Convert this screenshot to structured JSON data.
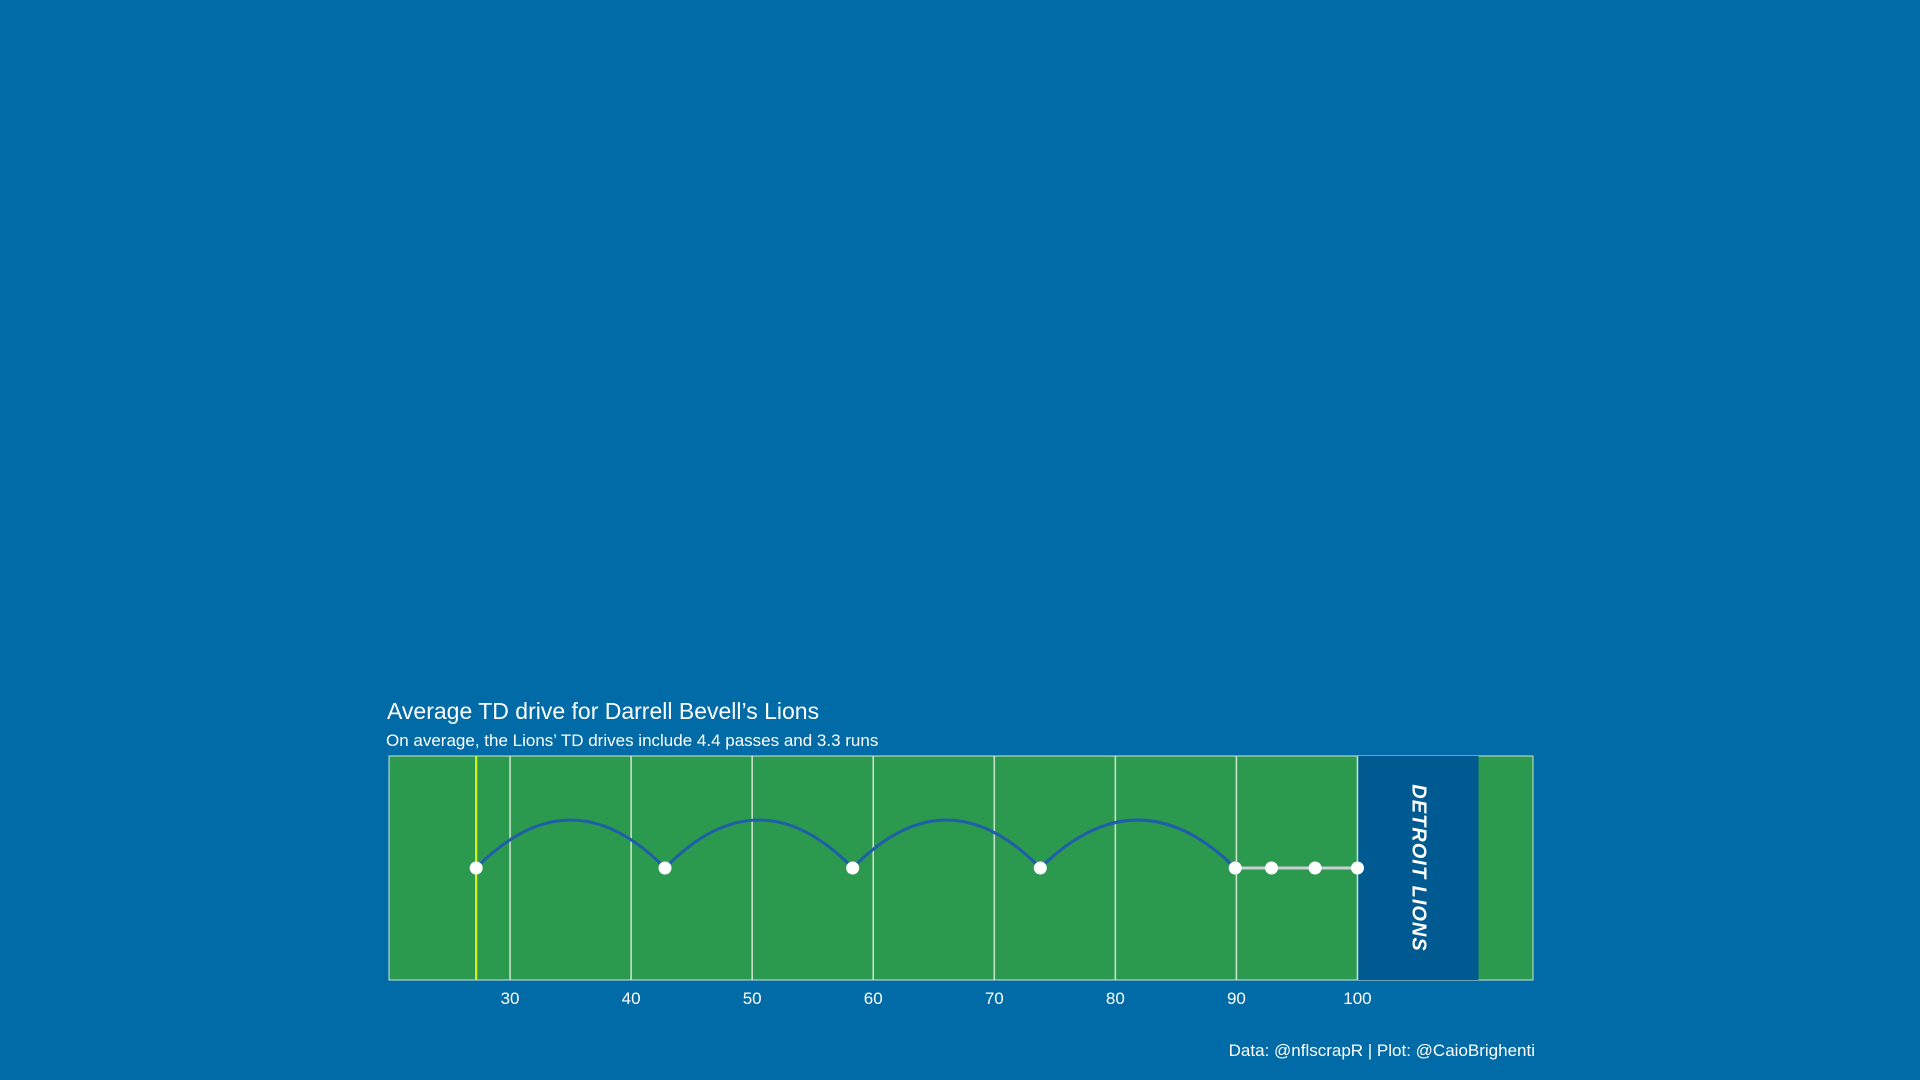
{
  "chart_data": {
    "type": "scatter",
    "title": "Average TD drive for Darrell Bevell’s Lions",
    "subtitle": "On average, the Lions’ TD drives include 4.4 passes and 3.3 runs",
    "caption": "Data: @nflscrapR | Plot: @CaioBrighenti",
    "xlabel": "",
    "ylabel": "",
    "xlim": [
      20,
      114.5
    ],
    "x_ticks": [
      30,
      40,
      50,
      60,
      70,
      80,
      90,
      100
    ],
    "x_tick_labels": [
      "30",
      "40",
      "50",
      "60",
      "70",
      "80",
      "90",
      "100"
    ],
    "line_of_scrimmage": 27.2,
    "endzone": {
      "from": 100,
      "to": 110,
      "label": "DETROIT LIONS"
    },
    "series": [
      {
        "name": "Pass",
        "kind": "arc",
        "segments": [
          [
            27.2,
            42.8
          ],
          [
            42.8,
            58.3
          ],
          [
            58.3,
            73.8
          ],
          [
            73.8,
            89.9
          ]
        ]
      },
      {
        "name": "Run",
        "kind": "line",
        "segments": [
          [
            89.9,
            92.9
          ],
          [
            92.9,
            96.5
          ],
          [
            96.5,
            100
          ]
        ]
      }
    ],
    "plays": [
      27.2,
      42.8,
      58.3,
      73.8,
      89.9,
      92.9,
      96.5,
      100
    ],
    "colors": {
      "background": "#006ba6",
      "field": "#2b9a4f",
      "yard_line": "#d8e8d8",
      "scrimmage_line": "#d9f21d",
      "endzone": "#005a92",
      "pass_arc": "#1f5ea8",
      "run_line": "#c9cfd2",
      "play_point": "#ffffff",
      "text": "#ffffff"
    },
    "grid": true,
    "legend": "none"
  }
}
